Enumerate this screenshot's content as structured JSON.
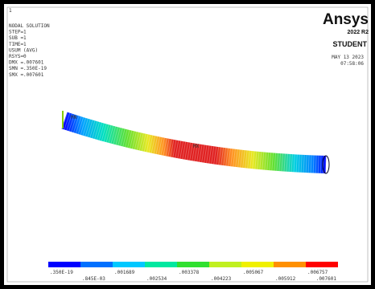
{
  "window": {
    "number": "1",
    "info": [
      "NODAL SOLUTION",
      "STEP=1",
      "SUB =1",
      "TIME=1",
      "USUM      (AVG)",
      "RSYS=0",
      "DMX =.007601",
      "SMN =.350E-19",
      "SMX =.007601"
    ],
    "brand": {
      "name": "Ansys",
      "version": "2022 R2",
      "edition": "STUDENT"
    },
    "date": "MAY 13 2023",
    "time": "07:58:06",
    "markers": {
      "min": "MN",
      "max": "MX"
    },
    "legend": [
      ".350E-19",
      ".845E-03",
      ".001689",
      ".002534",
      ".003378",
      ".004223",
      ".005067",
      ".005912",
      ".006757",
      ".007601"
    ]
  }
}
